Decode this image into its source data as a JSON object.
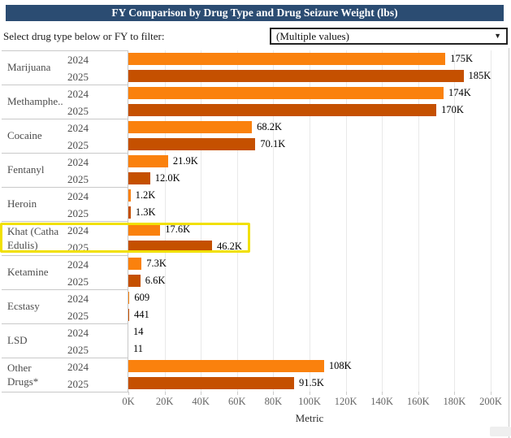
{
  "header": {
    "title": "FY Comparison by Drug Type and Drug Seizure Weight (lbs)",
    "bg_color": "#2b4c72"
  },
  "filter": {
    "label": "Select drug type below or FY to filter:",
    "dropdown_value": "(Multiple values)",
    "dropdown_arrow": "▼"
  },
  "colors": {
    "bar_2024": "#fa810d",
    "bar_2025": "#c55000",
    "highlight": "#f1e000",
    "gridline": "#e9e9e9",
    "separator": "#c9c9c9"
  },
  "chart_data": {
    "type": "bar",
    "orientation": "horizontal",
    "title": "FY Comparison by Drug Type and Drug Seizure Weight (lbs)",
    "xlabel": "Metric",
    "xlim": [
      0,
      200000
    ],
    "x_tick_interval": 20000,
    "x_tick_labels": [
      "0K",
      "20K",
      "40K",
      "60K",
      "80K",
      "100K",
      "120K",
      "140K",
      "160K",
      "180K",
      "200K"
    ],
    "grid": "vertical",
    "legend": "none",
    "categories": [
      "Marijuana",
      "Methamphe..",
      "Cocaine",
      "Fentanyl",
      "Heroin",
      "Khat (Catha Edulis)",
      "Ketamine",
      "Ecstasy",
      "LSD",
      "Other Drugs*"
    ],
    "series": [
      {
        "name": "2024",
        "color": "#fa810d",
        "values": [
          175000,
          174000,
          68200,
          21900,
          1200,
          17600,
          7300,
          609,
          14,
          108000
        ],
        "value_labels": [
          "175K",
          "174K",
          "68.2K",
          "21.9K",
          "1.2K",
          "17.6K",
          "7.3K",
          "609",
          "14",
          "108K"
        ]
      },
      {
        "name": "2025",
        "color": "#c55000",
        "values": [
          185000,
          170000,
          70100,
          12000,
          1300,
          46200,
          6600,
          441,
          11,
          91500
        ],
        "value_labels": [
          "185K",
          "170K",
          "70.1K",
          "12.0K",
          "1.3K",
          "46.2K",
          "6.6K",
          "441",
          "11",
          "91.5K"
        ]
      }
    ],
    "highlight": {
      "category": "Khat (Catha Edulis)",
      "index": 5,
      "color": "#f1e000"
    }
  }
}
